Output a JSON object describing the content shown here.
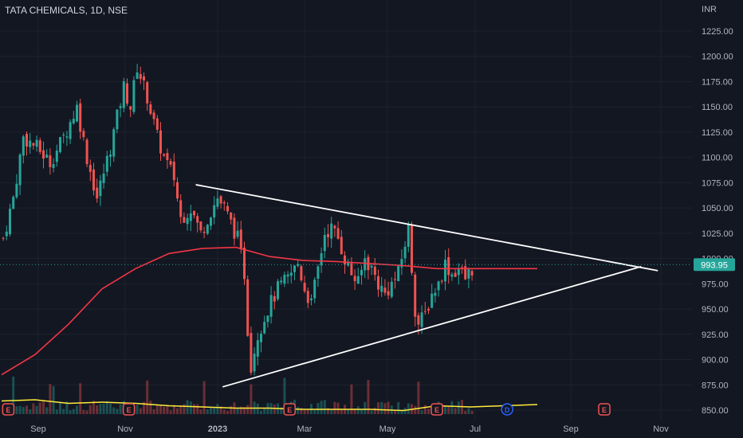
{
  "header": {
    "symbol": "TATA CHEMICALS, 1D, NSE",
    "currency": "INR"
  },
  "last_price": "993.95",
  "colors": {
    "background": "#131722",
    "up": "#26a69a",
    "down": "#ef5350",
    "ma": "#f23645",
    "volume_ma": "#ffeb3b",
    "trendline": "#ffffff",
    "price_tag": "#26a69a",
    "event_badge": "#ef5350",
    "dividend_badge": "#2962ff"
  },
  "chart_data": {
    "type": "candlestick",
    "y_axis": {
      "ticks": [
        "1225.00",
        "1200.00",
        "1175.00",
        "1150.00",
        "1125.00",
        "1100.00",
        "1075.00",
        "1050.00",
        "1025.00",
        "1000.00",
        "975.00",
        "950.00",
        "925.00",
        "900.00",
        "875.00",
        "850.00"
      ],
      "range": [
        845,
        1235
      ]
    },
    "x_axis": {
      "ticks": [
        "Sep",
        "Nov",
        "2023",
        "Mar",
        "May",
        "Jul",
        "Sep",
        "Nov"
      ]
    },
    "price_path": [
      [
        0,
        1020
      ],
      [
        3,
        1060
      ],
      [
        6,
        1120
      ],
      [
        10,
        1110
      ],
      [
        14,
        1095
      ],
      [
        18,
        1120
      ],
      [
        22,
        1150
      ],
      [
        25,
        1100
      ],
      [
        28,
        1060
      ],
      [
        32,
        1110
      ],
      [
        36,
        1170
      ],
      [
        38,
        1150
      ],
      [
        40,
        1190
      ],
      [
        43,
        1160
      ],
      [
        46,
        1120
      ],
      [
        48,
        1100
      ],
      [
        51,
        1080
      ],
      [
        53,
        1040
      ],
      [
        56,
        1050
      ],
      [
        59,
        1025
      ],
      [
        61,
        1040
      ],
      [
        64,
        1060
      ],
      [
        66,
        1050
      ],
      [
        68,
        1035
      ],
      [
        70,
        1020
      ],
      [
        72,
        985
      ],
      [
        73,
        930
      ],
      [
        74,
        895
      ],
      [
        76,
        925
      ],
      [
        79,
        950
      ],
      [
        82,
        970
      ],
      [
        85,
        980
      ],
      [
        88,
        995
      ],
      [
        90,
        970
      ],
      [
        92,
        955
      ],
      [
        94,
        990
      ],
      [
        96,
        1025
      ],
      [
        98,
        1030
      ],
      [
        100,
        1020
      ],
      [
        102,
        1000
      ],
      [
        104,
        985
      ],
      [
        106,
        975
      ],
      [
        108,
        1000
      ],
      [
        110,
        990
      ],
      [
        112,
        975
      ],
      [
        114,
        965
      ],
      [
        116,
        975
      ],
      [
        118,
        985
      ],
      [
        120,
        1015
      ],
      [
        121,
        1030
      ],
      [
        122,
        990
      ],
      [
        123,
        950
      ],
      [
        124,
        935
      ],
      [
        126,
        945
      ],
      [
        128,
        965
      ],
      [
        130,
        975
      ],
      [
        132,
        995
      ],
      [
        134,
        985
      ],
      [
        136,
        990
      ],
      [
        138,
        980
      ],
      [
        140,
        990
      ],
      [
        142,
        970
      ],
      [
        144,
        975
      ],
      [
        146,
        995
      ],
      [
        148,
        1010
      ],
      [
        150,
        1000
      ],
      [
        152,
        990
      ],
      [
        154,
        975
      ],
      [
        156,
        960
      ],
      [
        158,
        985
      ],
      [
        160,
        1000
      ]
    ],
    "moving_average_path": [
      [
        0,
        885
      ],
      [
        10,
        905
      ],
      [
        20,
        935
      ],
      [
        30,
        970
      ],
      [
        40,
        990
      ],
      [
        50,
        1005
      ],
      [
        60,
        1010
      ],
      [
        70,
        1011
      ],
      [
        80,
        1002
      ],
      [
        90,
        998
      ],
      [
        100,
        997
      ],
      [
        110,
        995
      ],
      [
        120,
        993
      ],
      [
        130,
        990
      ],
      [
        140,
        990
      ],
      [
        150,
        990
      ],
      [
        160,
        990
      ]
    ],
    "volume_ma_path": [
      [
        0,
        0.55
      ],
      [
        10,
        0.6
      ],
      [
        20,
        0.45
      ],
      [
        30,
        0.5
      ],
      [
        40,
        0.45
      ],
      [
        50,
        0.35
      ],
      [
        60,
        0.3
      ],
      [
        70,
        0.25
      ],
      [
        80,
        0.25
      ],
      [
        90,
        0.2
      ],
      [
        100,
        0.2
      ],
      [
        110,
        0.2
      ],
      [
        120,
        0.15
      ],
      [
        130,
        0.35
      ],
      [
        140,
        0.3
      ],
      [
        150,
        0.35
      ],
      [
        160,
        0.4
      ]
    ],
    "trendlines": [
      {
        "from": [
          58,
          1073
        ],
        "to": [
          196,
          988
        ]
      },
      {
        "from": [
          66,
          873
        ],
        "to": [
          191,
          992
        ]
      }
    ],
    "events": [
      {
        "label": "E",
        "bar": 2
      },
      {
        "label": "E",
        "bar": 38
      },
      {
        "label": "E",
        "bar": 86
      },
      {
        "label": "E",
        "bar": 130
      },
      {
        "label": "D",
        "bar": 151
      },
      {
        "label": "E",
        "bar": 180
      }
    ]
  }
}
